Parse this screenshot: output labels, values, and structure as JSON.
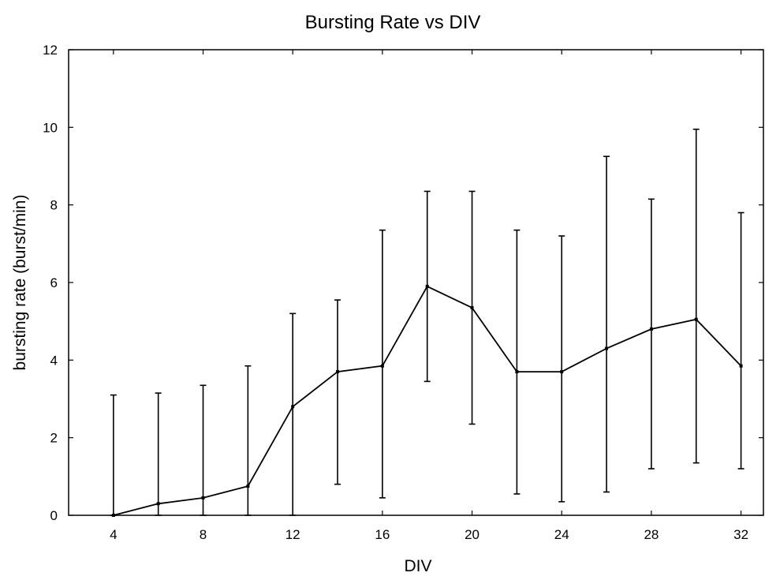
{
  "chart_data": {
    "type": "line",
    "title": "Bursting Rate vs DIV",
    "xlabel": "DIV",
    "ylabel": "bursting rate (burst/min)",
    "xlim": [
      2,
      33
    ],
    "ylim": [
      0,
      12
    ],
    "x_ticks": [
      4,
      8,
      12,
      16,
      20,
      24,
      28,
      32
    ],
    "y_ticks": [
      0,
      2,
      4,
      6,
      8,
      10,
      12
    ],
    "grid": false,
    "legend": "none",
    "colors": {
      "line": "#000000",
      "axes": "#000000",
      "background": "#ffffff"
    },
    "series": [
      {
        "x": [
          4,
          6,
          8,
          10,
          12,
          14,
          16,
          18,
          20,
          22,
          24,
          26,
          28,
          30,
          32
        ],
        "y": [
          0.0,
          0.3,
          0.45,
          0.75,
          2.8,
          3.7,
          3.85,
          5.9,
          5.35,
          3.7,
          3.7,
          4.3,
          4.8,
          5.05,
          3.85
        ],
        "err_low": [
          0.0,
          0.0,
          0.0,
          0.0,
          0.0,
          0.8,
          0.45,
          3.45,
          2.35,
          0.55,
          0.35,
          0.6,
          1.2,
          1.35,
          1.2
        ],
        "err_high": [
          3.1,
          3.15,
          3.35,
          3.85,
          5.2,
          5.55,
          7.35,
          8.35,
          8.35,
          7.35,
          7.2,
          9.25,
          8.15,
          9.95,
          7.8
        ]
      }
    ]
  }
}
